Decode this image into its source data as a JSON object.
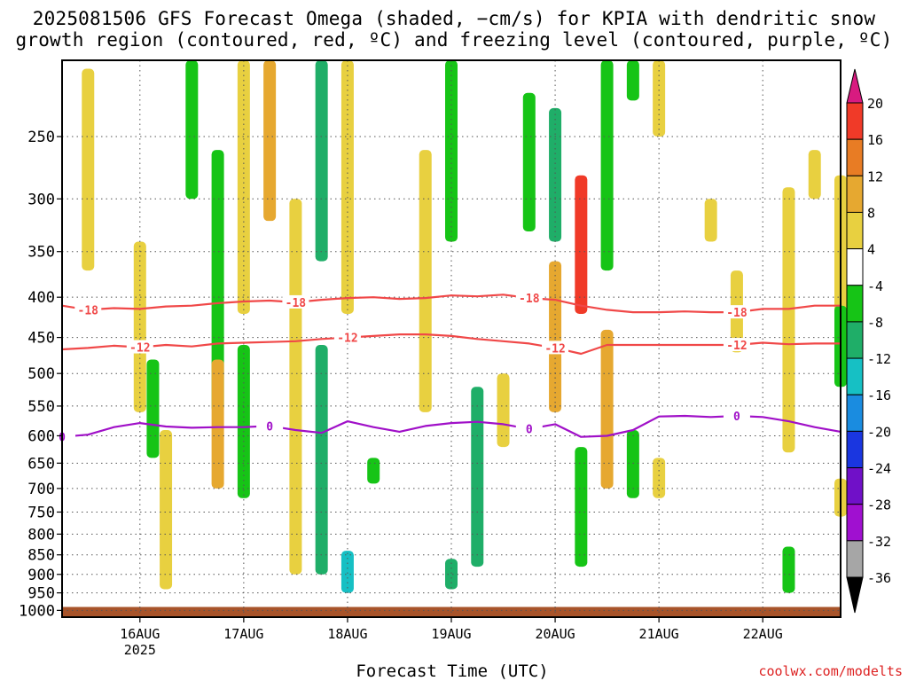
{
  "header": {
    "title_line1": "2025081506 GFS Forecast Omega (shaded, −cm/s) for KPIA with dendritic snow",
    "title_line2": "growth region (contoured, red, ºC) and freezing level (contoured, purple, ºC)"
  },
  "footer": {
    "xaxis_title": "Forecast Time (UTC)",
    "credit": "coolwx.com/modelts"
  },
  "chart_data": {
    "type": "heatmap",
    "title": "2025081506 GFS Forecast Omega (shaded, −cm/s) for KPIA with dendritic snow growth region (contoured, red, ºC) and freezing level (contoured, purple, ºC)",
    "xlabel": "Forecast Time (UTC)",
    "ylabel": "",
    "x_range": [
      "2025-08-15T06",
      "2025-08-22T18"
    ],
    "y_range_hpa": [
      1020,
      200
    ],
    "y_scale": "log-pressure (reversed)",
    "grid": true,
    "x_ticks": [
      {
        "date": "2025-08-16",
        "label": "16AUG",
        "sublabel": "2025"
      },
      {
        "date": "2025-08-17",
        "label": "17AUG",
        "sublabel": ""
      },
      {
        "date": "2025-08-18",
        "label": "18AUG",
        "sublabel": ""
      },
      {
        "date": "2025-08-19",
        "label": "19AUG",
        "sublabel": ""
      },
      {
        "date": "2025-08-20",
        "label": "20AUG",
        "sublabel": ""
      },
      {
        "date": "2025-08-21",
        "label": "21AUG",
        "sublabel": ""
      },
      {
        "date": "2025-08-22",
        "label": "22AUG",
        "sublabel": ""
      }
    ],
    "y_ticks": [
      250,
      300,
      350,
      400,
      450,
      500,
      550,
      600,
      650,
      700,
      750,
      800,
      850,
      900,
      950,
      1000
    ],
    "colorbar": {
      "labels": [
        20,
        16,
        12,
        8,
        4,
        -4,
        -8,
        -12,
        -16,
        -20,
        -24,
        -28,
        -32,
        -36
      ],
      "colors": [
        "#d81b80",
        "#f03a28",
        "#e87c24",
        "#e6a830",
        "#e8d040",
        "#ffffff",
        "#16c416",
        "#1fae68",
        "#16c0c4",
        "#1a8ce0",
        "#1a36e0",
        "#7010c8",
        "#a010d0",
        "#a6a6a6",
        "#000000"
      ]
    },
    "terrain_color": "#a8542a",
    "terrain_top_hpa": 990,
    "contours": [
      {
        "label": "-18",
        "color": "#f04848",
        "label_dates": [
          "2025-08-15T12",
          "2025-08-17T12",
          "2025-08-19T18",
          "2025-08-21T18"
        ],
        "points": [
          [
            "2025-08-15T06",
            410
          ],
          [
            "2025-08-15T12",
            415
          ],
          [
            "2025-08-15T18",
            413
          ],
          [
            "2025-08-16T00",
            414
          ],
          [
            "2025-08-16T06",
            411
          ],
          [
            "2025-08-16T12",
            410
          ],
          [
            "2025-08-16T18",
            407
          ],
          [
            "2025-08-17T00",
            405
          ],
          [
            "2025-08-17T06",
            404
          ],
          [
            "2025-08-17T12",
            406
          ],
          [
            "2025-08-17T18",
            403
          ],
          [
            "2025-08-18T00",
            401
          ],
          [
            "2025-08-18T06",
            400
          ],
          [
            "2025-08-18T12",
            402
          ],
          [
            "2025-08-18T18",
            401
          ],
          [
            "2025-08-19T00",
            398
          ],
          [
            "2025-08-19T06",
            399
          ],
          [
            "2025-08-19T12",
            397
          ],
          [
            "2025-08-19T18",
            401
          ],
          [
            "2025-08-20T00",
            403
          ],
          [
            "2025-08-20T06",
            410
          ],
          [
            "2025-08-20T12",
            415
          ],
          [
            "2025-08-20T18",
            418
          ],
          [
            "2025-08-21T00",
            418
          ],
          [
            "2025-08-21T06",
            417
          ],
          [
            "2025-08-21T12",
            418
          ],
          [
            "2025-08-21T18",
            418
          ],
          [
            "2025-08-22T00",
            414
          ],
          [
            "2025-08-22T06",
            414
          ],
          [
            "2025-08-22T12",
            410
          ],
          [
            "2025-08-22T18",
            410
          ]
        ]
      },
      {
        "label": "-12",
        "color": "#f04848",
        "label_dates": [
          "2025-08-16T00",
          "2025-08-18T00",
          "2025-08-20T00",
          "2025-08-21T18"
        ],
        "points": [
          [
            "2025-08-15T06",
            466
          ],
          [
            "2025-08-15T12",
            464
          ],
          [
            "2025-08-15T18",
            461
          ],
          [
            "2025-08-16T00",
            463
          ],
          [
            "2025-08-16T06",
            460
          ],
          [
            "2025-08-16T12",
            462
          ],
          [
            "2025-08-16T18",
            458
          ],
          [
            "2025-08-17T00",
            457
          ],
          [
            "2025-08-17T06",
            456
          ],
          [
            "2025-08-17T12",
            455
          ],
          [
            "2025-08-17T18",
            452
          ],
          [
            "2025-08-18T00",
            450
          ],
          [
            "2025-08-18T06",
            448
          ],
          [
            "2025-08-18T12",
            446
          ],
          [
            "2025-08-18T18",
            446
          ],
          [
            "2025-08-19T00",
            448
          ],
          [
            "2025-08-19T06",
            452
          ],
          [
            "2025-08-19T12",
            455
          ],
          [
            "2025-08-19T18",
            458
          ],
          [
            "2025-08-20T00",
            464
          ],
          [
            "2025-08-20T06",
            472
          ],
          [
            "2025-08-20T12",
            460
          ],
          [
            "2025-08-20T18",
            460
          ],
          [
            "2025-08-21T00",
            460
          ],
          [
            "2025-08-21T06",
            460
          ],
          [
            "2025-08-21T12",
            460
          ],
          [
            "2025-08-21T18",
            460
          ],
          [
            "2025-08-22T00",
            457
          ],
          [
            "2025-08-22T06",
            459
          ],
          [
            "2025-08-22T12",
            458
          ],
          [
            "2025-08-22T18",
            458
          ]
        ]
      },
      {
        "label": "0",
        "color": "#a010c8",
        "label_dates": [
          "2025-08-15T06",
          "2025-08-17T06",
          "2025-08-19T18",
          "2025-08-21T18"
        ],
        "points": [
          [
            "2025-08-15T06",
            602
          ],
          [
            "2025-08-15T12",
            598
          ],
          [
            "2025-08-15T18",
            585
          ],
          [
            "2025-08-16T00",
            578
          ],
          [
            "2025-08-16T06",
            584
          ],
          [
            "2025-08-16T12",
            586
          ],
          [
            "2025-08-16T18",
            585
          ],
          [
            "2025-08-17T00",
            585
          ],
          [
            "2025-08-17T06",
            583
          ],
          [
            "2025-08-17T12",
            590
          ],
          [
            "2025-08-17T18",
            595
          ],
          [
            "2025-08-18T00",
            575
          ],
          [
            "2025-08-18T06",
            585
          ],
          [
            "2025-08-18T12",
            593
          ],
          [
            "2025-08-18T18",
            583
          ],
          [
            "2025-08-19T00",
            578
          ],
          [
            "2025-08-19T06",
            576
          ],
          [
            "2025-08-19T12",
            580
          ],
          [
            "2025-08-19T18",
            588
          ],
          [
            "2025-08-20T00",
            580
          ],
          [
            "2025-08-20T06",
            602
          ],
          [
            "2025-08-20T12",
            600
          ],
          [
            "2025-08-20T18",
            590
          ],
          [
            "2025-08-21T00",
            567
          ],
          [
            "2025-08-21T06",
            566
          ],
          [
            "2025-08-21T12",
            568
          ],
          [
            "2025-08-21T18",
            566
          ],
          [
            "2025-08-22T00",
            568
          ],
          [
            "2025-08-22T06",
            575
          ],
          [
            "2025-08-22T12",
            585
          ],
          [
            "2025-08-22T18",
            593
          ]
        ]
      }
    ],
    "omega_cells": [
      {
        "date": "2025-08-15T12",
        "p_top": 205,
        "p_bot": 370,
        "value": 5
      },
      {
        "date": "2025-08-16T00",
        "p_top": 340,
        "p_bot": 560,
        "value": 5
      },
      {
        "date": "2025-08-16T06",
        "p_top": 590,
        "p_bot": 940,
        "value": 5
      },
      {
        "date": "2025-08-16T03",
        "p_top": 480,
        "p_bot": 640,
        "value": -6
      },
      {
        "date": "2025-08-16T12",
        "p_top": 200,
        "p_bot": 300,
        "value": -6
      },
      {
        "date": "2025-08-16T18",
        "p_top": 260,
        "p_bot": 560,
        "value": -6
      },
      {
        "date": "2025-08-16T18",
        "p_top": 480,
        "p_bot": 700,
        "value": 10
      },
      {
        "date": "2025-08-17T00",
        "p_top": 200,
        "p_bot": 420,
        "value": 5
      },
      {
        "date": "2025-08-17T00",
        "p_top": 460,
        "p_bot": 720,
        "value": -6
      },
      {
        "date": "2025-08-17T06",
        "p_top": 200,
        "p_bot": 320,
        "value": 10
      },
      {
        "date": "2025-08-17T12",
        "p_top": 300,
        "p_bot": 900,
        "value": 5
      },
      {
        "date": "2025-08-17T18",
        "p_top": 200,
        "p_bot": 360,
        "value": -10
      },
      {
        "date": "2025-08-17T18",
        "p_top": 460,
        "p_bot": 900,
        "value": -10
      },
      {
        "date": "2025-08-18T00",
        "p_top": 200,
        "p_bot": 420,
        "value": 5
      },
      {
        "date": "2025-08-18T00",
        "p_top": 840,
        "p_bot": 950,
        "value": -14
      },
      {
        "date": "2025-08-18T06",
        "p_top": 640,
        "p_bot": 690,
        "value": -6
      },
      {
        "date": "2025-08-18T18",
        "p_top": 260,
        "p_bot": 560,
        "value": 5
      },
      {
        "date": "2025-08-19T00",
        "p_top": 200,
        "p_bot": 340,
        "value": -6
      },
      {
        "date": "2025-08-19T00",
        "p_top": 860,
        "p_bot": 940,
        "value": -10
      },
      {
        "date": "2025-08-19T06",
        "p_top": 520,
        "p_bot": 880,
        "value": -10
      },
      {
        "date": "2025-08-19T12",
        "p_top": 500,
        "p_bot": 620,
        "value": 5
      },
      {
        "date": "2025-08-19T18",
        "p_top": 220,
        "p_bot": 330,
        "value": -6
      },
      {
        "date": "2025-08-20T00",
        "p_top": 230,
        "p_bot": 340,
        "value": -10
      },
      {
        "date": "2025-08-20T00",
        "p_top": 360,
        "p_bot": 560,
        "value": 10
      },
      {
        "date": "2025-08-20T06",
        "p_top": 280,
        "p_bot": 420,
        "value": 16
      },
      {
        "date": "2025-08-20T06",
        "p_top": 620,
        "p_bot": 880,
        "value": -6
      },
      {
        "date": "2025-08-20T12",
        "p_top": 200,
        "p_bot": 370,
        "value": -6
      },
      {
        "date": "2025-08-20T12",
        "p_top": 440,
        "p_bot": 700,
        "value": 10
      },
      {
        "date": "2025-08-20T18",
        "p_top": 200,
        "p_bot": 225,
        "value": -6
      },
      {
        "date": "2025-08-20T18",
        "p_top": 590,
        "p_bot": 720,
        "value": -6
      },
      {
        "date": "2025-08-21T00",
        "p_top": 640,
        "p_bot": 720,
        "value": 5
      },
      {
        "date": "2025-08-21T00",
        "p_top": 200,
        "p_bot": 250,
        "value": 5
      },
      {
        "date": "2025-08-21T12",
        "p_top": 300,
        "p_bot": 340,
        "value": 5
      },
      {
        "date": "2025-08-21T18",
        "p_top": 370,
        "p_bot": 470,
        "value": 5
      },
      {
        "date": "2025-08-22T06",
        "p_top": 290,
        "p_bot": 630,
        "value": 5
      },
      {
        "date": "2025-08-22T06",
        "p_top": 830,
        "p_bot": 950,
        "value": -6
      },
      {
        "date": "2025-08-22T12",
        "p_top": 260,
        "p_bot": 300,
        "value": 5
      },
      {
        "date": "2025-08-22T18",
        "p_top": 280,
        "p_bot": 470,
        "value": 5
      },
      {
        "date": "2025-08-22T18",
        "p_top": 410,
        "p_bot": 520,
        "value": -6
      },
      {
        "date": "2025-08-22T18",
        "p_top": 680,
        "p_bot": 760,
        "value": 5
      }
    ]
  }
}
